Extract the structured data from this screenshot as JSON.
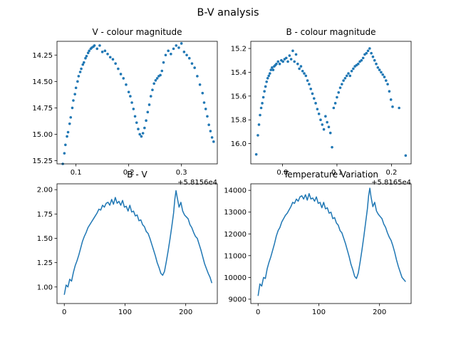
{
  "figure": {
    "suptitle": "B-V analysis"
  },
  "chart_data": [
    {
      "type": "scatter",
      "title": "V - colour magnitude",
      "xlabel": "",
      "ylabel": "",
      "xlim": [
        0.064,
        0.368
      ],
      "ylim": [
        15.28,
        14.12
      ],
      "y_inverted": true,
      "x_ticks": [
        0.1,
        0.2,
        0.3
      ],
      "x_tick_labels": [
        "0.1",
        "0.2",
        "0.3"
      ],
      "y_ticks": [
        14.25,
        14.5,
        14.75,
        15.0,
        15.25
      ],
      "y_tick_labels": [
        "14.25",
        "14.50",
        "14.75",
        "15.00",
        "15.25"
      ],
      "x_offset_label": "+5.8156e4",
      "color": "#1f77b4",
      "x": [
        0.075,
        0.078,
        0.08,
        0.083,
        0.085,
        0.088,
        0.09,
        0.093,
        0.095,
        0.098,
        0.1,
        0.103,
        0.105,
        0.108,
        0.11,
        0.113,
        0.115,
        0.118,
        0.12,
        0.123,
        0.125,
        0.128,
        0.13,
        0.133,
        0.135,
        0.14,
        0.145,
        0.15,
        0.155,
        0.16,
        0.165,
        0.17,
        0.175,
        0.18,
        0.185,
        0.19,
        0.195,
        0.2,
        0.203,
        0.206,
        0.209,
        0.212,
        0.215,
        0.218,
        0.221,
        0.224,
        0.227,
        0.23,
        0.233,
        0.236,
        0.239,
        0.242,
        0.245,
        0.248,
        0.251,
        0.254,
        0.257,
        0.26,
        0.263,
        0.266,
        0.27,
        0.275,
        0.28,
        0.285,
        0.29,
        0.295,
        0.3,
        0.305,
        0.31,
        0.315,
        0.32,
        0.325,
        0.33,
        0.335,
        0.34,
        0.343,
        0.346,
        0.349,
        0.352,
        0.355,
        0.358,
        0.361
      ],
      "y": [
        15.28,
        15.18,
        15.1,
        15.02,
        14.98,
        14.9,
        14.84,
        14.75,
        14.68,
        14.62,
        14.56,
        14.5,
        14.45,
        14.41,
        14.38,
        14.34,
        14.32,
        14.28,
        14.26,
        14.23,
        14.21,
        14.19,
        14.18,
        14.17,
        14.16,
        14.19,
        14.16,
        14.22,
        14.21,
        14.24,
        14.27,
        14.29,
        14.33,
        14.38,
        14.43,
        14.47,
        14.53,
        14.6,
        14.64,
        14.7,
        14.76,
        14.83,
        14.89,
        14.95,
        15.0,
        15.02,
        14.99,
        14.94,
        14.87,
        14.79,
        14.72,
        14.64,
        14.58,
        14.52,
        14.49,
        14.47,
        14.45,
        14.44,
        14.4,
        14.32,
        14.25,
        14.21,
        14.24,
        14.19,
        14.16,
        14.18,
        14.14,
        14.22,
        14.25,
        14.28,
        14.33,
        14.37,
        14.45,
        14.53,
        14.61,
        14.7,
        14.76,
        14.83,
        14.91,
        14.97,
        15.03,
        15.07
      ]
    },
    {
      "type": "scatter",
      "title": "B - colour magnitude",
      "xlabel": "",
      "ylabel": "",
      "xlim": [
        -0.058,
        0.236
      ],
      "ylim": [
        16.17,
        15.14
      ],
      "y_inverted": true,
      "x_ticks": [
        0.0,
        0.1,
        0.2
      ],
      "x_tick_labels": [
        "0.0",
        "0.1",
        "0.2"
      ],
      "y_ticks": [
        15.2,
        15.4,
        15.6,
        15.8,
        16.0
      ],
      "y_tick_labels": [
        "15.2",
        "15.4",
        "15.6",
        "15.8",
        "16.0"
      ],
      "x_offset_label": "+5.8165e4",
      "color": "#1f77b4",
      "x": [
        -0.048,
        -0.045,
        -0.043,
        -0.041,
        -0.039,
        -0.037,
        -0.035,
        -0.033,
        -0.031,
        -0.029,
        -0.027,
        -0.025,
        -0.023,
        -0.021,
        -0.019,
        -0.017,
        -0.015,
        -0.013,
        -0.011,
        -0.008,
        -0.005,
        -0.002,
        0.001,
        0.004,
        0.007,
        0.01,
        0.013,
        0.016,
        0.019,
        0.022,
        0.025,
        0.028,
        0.031,
        0.034,
        0.037,
        0.04,
        0.043,
        0.046,
        0.049,
        0.052,
        0.055,
        0.058,
        0.061,
        0.064,
        0.067,
        0.07,
        0.073,
        0.076,
        0.079,
        0.082,
        0.085,
        0.088,
        0.091,
        0.094,
        0.097,
        0.1,
        0.103,
        0.106,
        0.109,
        0.112,
        0.115,
        0.118,
        0.121,
        0.124,
        0.127,
        0.13,
        0.133,
        0.136,
        0.139,
        0.142,
        0.145,
        0.148,
        0.151,
        0.154,
        0.157,
        0.16,
        0.163,
        0.166,
        0.169,
        0.172,
        0.175,
        0.178,
        0.181,
        0.184,
        0.187,
        0.19,
        0.193,
        0.196,
        0.199,
        0.202,
        0.214,
        0.226
      ],
      "y": [
        16.09,
        15.93,
        15.84,
        15.76,
        15.7,
        15.66,
        15.61,
        15.56,
        15.52,
        15.48,
        15.45,
        15.43,
        15.41,
        15.38,
        15.36,
        15.38,
        15.35,
        15.34,
        15.33,
        15.31,
        15.33,
        15.3,
        15.31,
        15.29,
        15.28,
        15.31,
        15.26,
        15.29,
        15.22,
        15.31,
        15.25,
        15.33,
        15.37,
        15.35,
        15.39,
        15.41,
        15.43,
        15.47,
        15.5,
        15.54,
        15.58,
        15.62,
        15.66,
        15.71,
        15.75,
        15.8,
        15.84,
        15.88,
        15.77,
        15.82,
        15.86,
        15.91,
        16.03,
        15.7,
        15.66,
        15.61,
        15.57,
        15.53,
        15.5,
        15.47,
        15.45,
        15.43,
        15.41,
        15.43,
        15.39,
        15.37,
        15.35,
        15.34,
        15.33,
        15.31,
        15.3,
        15.28,
        15.25,
        15.24,
        15.22,
        15.2,
        15.24,
        15.27,
        15.3,
        15.33,
        15.36,
        15.38,
        15.4,
        15.42,
        15.44,
        15.47,
        15.5,
        15.56,
        15.63,
        15.69,
        15.7,
        16.1
      ]
    },
    {
      "type": "line",
      "title": "B - V",
      "xlabel": "",
      "ylabel": "",
      "xlim": [
        -12,
        252
      ],
      "ylim": [
        0.83,
        2.06
      ],
      "x_ticks": [
        0,
        100,
        200
      ],
      "x_tick_labels": [
        "0",
        "100",
        "200"
      ],
      "y_ticks": [
        1.0,
        1.25,
        1.5,
        1.75,
        2.0
      ],
      "y_tick_labels": [
        "1.00",
        "1.25",
        "1.50",
        "1.75",
        "2.00"
      ],
      "color": "#1f77b4",
      "x": [
        0,
        3,
        6,
        9,
        12,
        15,
        18,
        21,
        24,
        27,
        30,
        33,
        36,
        39,
        42,
        45,
        48,
        51,
        54,
        57,
        60,
        63,
        66,
        69,
        72,
        75,
        78,
        81,
        84,
        87,
        90,
        93,
        96,
        99,
        102,
        105,
        108,
        111,
        114,
        117,
        120,
        123,
        126,
        129,
        132,
        135,
        138,
        141,
        144,
        147,
        150,
        153,
        156,
        159,
        162,
        165,
        168,
        171,
        174,
        177,
        180,
        182,
        184,
        186,
        189,
        192,
        195,
        198,
        201,
        204,
        207,
        210,
        213,
        216,
        219,
        222,
        225,
        228,
        231,
        234,
        237,
        240,
        243
      ],
      "y": [
        0.92,
        1.02,
        1.0,
        1.08,
        1.06,
        1.15,
        1.22,
        1.27,
        1.33,
        1.4,
        1.47,
        1.52,
        1.56,
        1.61,
        1.64,
        1.67,
        1.7,
        1.73,
        1.76,
        1.8,
        1.79,
        1.84,
        1.82,
        1.86,
        1.87,
        1.84,
        1.9,
        1.85,
        1.92,
        1.86,
        1.88,
        1.84,
        1.89,
        1.82,
        1.83,
        1.78,
        1.84,
        1.77,
        1.78,
        1.73,
        1.74,
        1.68,
        1.69,
        1.64,
        1.62,
        1.57,
        1.55,
        1.5,
        1.44,
        1.38,
        1.32,
        1.25,
        1.2,
        1.14,
        1.12,
        1.16,
        1.26,
        1.37,
        1.49,
        1.62,
        1.76,
        1.9,
        1.99,
        1.92,
        1.82,
        1.87,
        1.78,
        1.74,
        1.72,
        1.7,
        1.64,
        1.61,
        1.56,
        1.52,
        1.5,
        1.44,
        1.38,
        1.31,
        1.24,
        1.19,
        1.14,
        1.1,
        1.04
      ]
    },
    {
      "type": "line",
      "title": "Temperature Variation",
      "xlabel": "",
      "ylabel": "",
      "xlim": [
        -12,
        252
      ],
      "ylim": [
        8800,
        14300
      ],
      "x_ticks": [
        0,
        100,
        200
      ],
      "x_tick_labels": [
        "0",
        "100",
        "200"
      ],
      "y_ticks": [
        9000,
        10000,
        11000,
        12000,
        13000,
        14000
      ],
      "y_tick_labels": [
        "9000",
        "10000",
        "11000",
        "12000",
        "13000",
        "14000"
      ],
      "color": "#1f77b4",
      "x": [
        0,
        3,
        6,
        9,
        12,
        15,
        18,
        21,
        24,
        27,
        30,
        33,
        36,
        39,
        42,
        45,
        48,
        51,
        54,
        57,
        60,
        63,
        66,
        69,
        72,
        75,
        78,
        81,
        84,
        87,
        90,
        93,
        96,
        99,
        102,
        105,
        108,
        111,
        114,
        117,
        120,
        123,
        126,
        129,
        132,
        135,
        138,
        141,
        144,
        147,
        150,
        153,
        156,
        159,
        162,
        165,
        168,
        171,
        174,
        177,
        180,
        182,
        184,
        186,
        189,
        192,
        195,
        198,
        201,
        204,
        207,
        210,
        213,
        216,
        219,
        222,
        225,
        228,
        231,
        234,
        237,
        240,
        243
      ],
      "y": [
        9150,
        9700,
        9600,
        10000,
        9950,
        10400,
        10700,
        10950,
        11250,
        11550,
        11900,
        12150,
        12300,
        12550,
        12700,
        12850,
        12950,
        13100,
        13250,
        13450,
        13400,
        13600,
        13500,
        13700,
        13750,
        13600,
        13800,
        13550,
        13850,
        13600,
        13650,
        13500,
        13700,
        13400,
        13450,
        13200,
        13450,
        13150,
        13200,
        12950,
        13000,
        12700,
        12750,
        12500,
        12400,
        12150,
        12050,
        11800,
        11550,
        11250,
        10950,
        10600,
        10350,
        10050,
        9950,
        10200,
        10700,
        11250,
        11850,
        12500,
        13150,
        13750,
        14100,
        13700,
        13250,
        13450,
        13050,
        12900,
        12800,
        12700,
        12450,
        12300,
        12050,
        11850,
        11700,
        11450,
        11150,
        10800,
        10500,
        10250,
        10000,
        9900,
        9800
      ]
    }
  ]
}
